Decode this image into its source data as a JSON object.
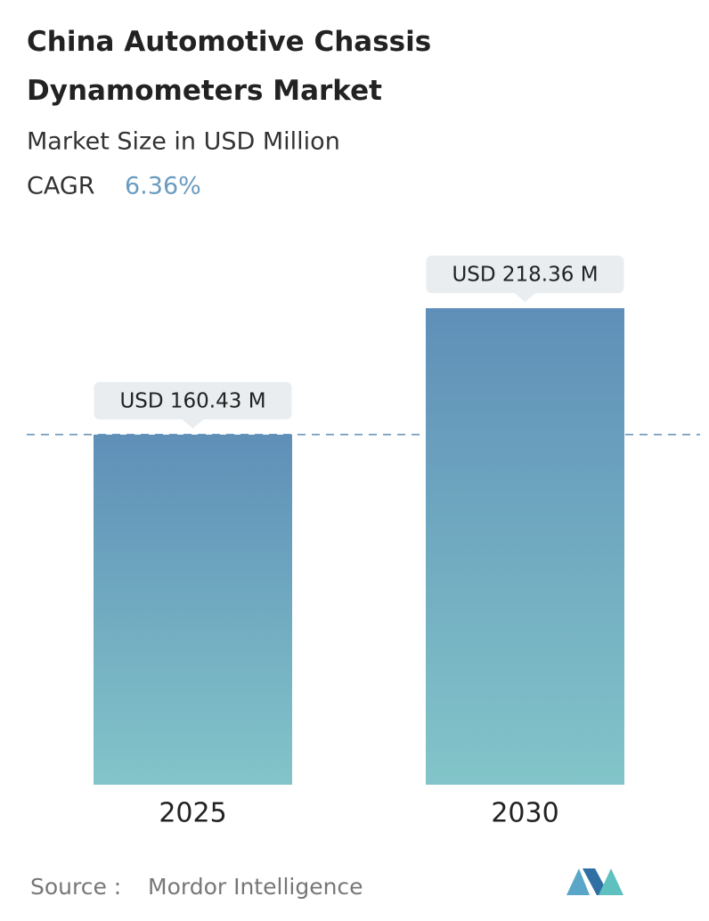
{
  "chart_data": {
    "type": "bar",
    "title": "China Automotive Chassis Dynamometers Market",
    "subtitle": "Market Size in USD Million",
    "cagr_label": "CAGR",
    "cagr_value": "6.36%",
    "categories": [
      "2025",
      "2030"
    ],
    "values": [
      160.43,
      218.36
    ],
    "value_labels": [
      "USD 160.43 M",
      "USD 218.36 M"
    ],
    "color_top": "#5f8fb8",
    "color_bottom": "#82c5c9",
    "source_label": "Source :",
    "source": "Mordor Intelligence"
  }
}
